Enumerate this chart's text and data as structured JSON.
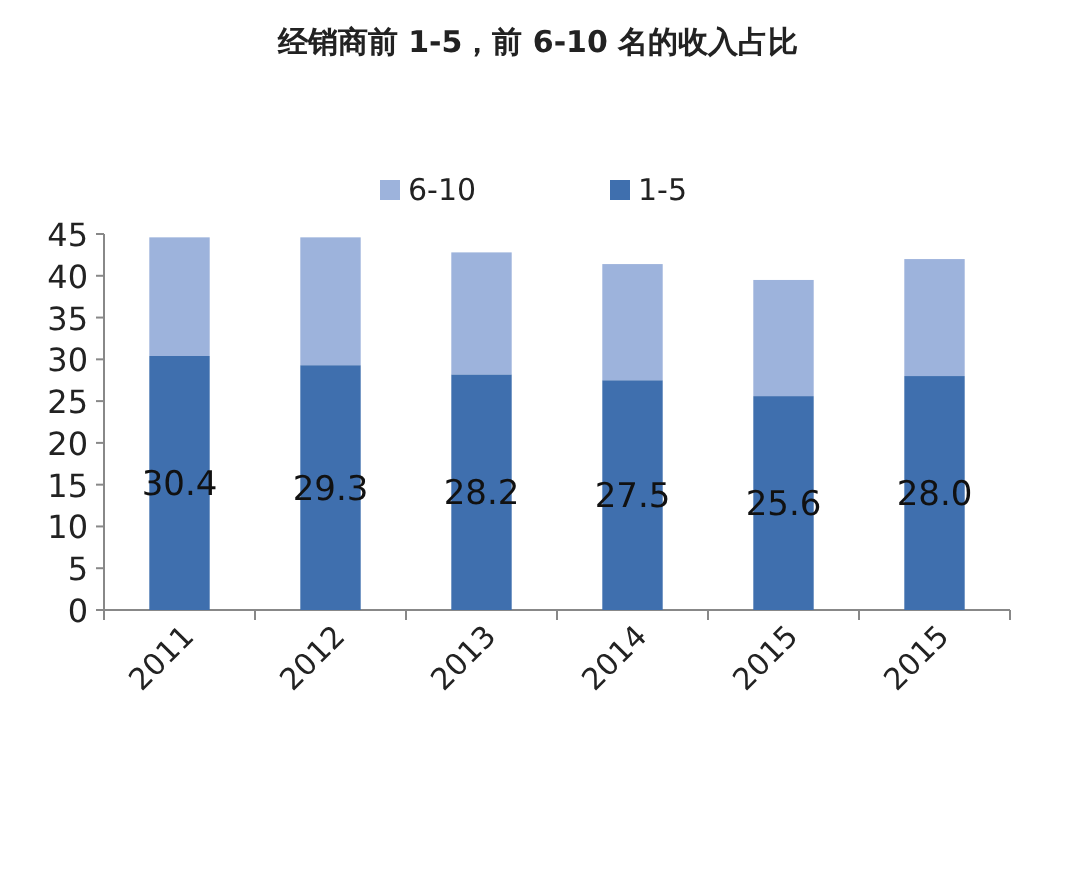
{
  "chart_data": {
    "type": "bar",
    "title": "经销商前 1-5，前 6-10 名的收入占比",
    "stacked": true,
    "legend": "top",
    "grid": false,
    "categories": [
      "2011",
      "2012",
      "2013",
      "2014",
      "2015",
      "2015"
    ],
    "series": [
      {
        "name": "1-5",
        "color": "#3f6fae",
        "values": [
          30.4,
          29.3,
          28.2,
          27.5,
          25.6,
          28.0
        ],
        "value_labels": [
          "30.4",
          "29.3",
          "28.2",
          "27.5",
          "25.6",
          "28.0"
        ]
      },
      {
        "name": "6-10",
        "color": "#9db3dc",
        "values": [
          14.2,
          15.3,
          14.6,
          13.9,
          13.9,
          14.0
        ]
      }
    ],
    "ylim": [
      0,
      45
    ],
    "yticks": [
      0,
      5,
      10,
      15,
      20,
      25,
      30,
      35,
      40,
      45
    ]
  }
}
